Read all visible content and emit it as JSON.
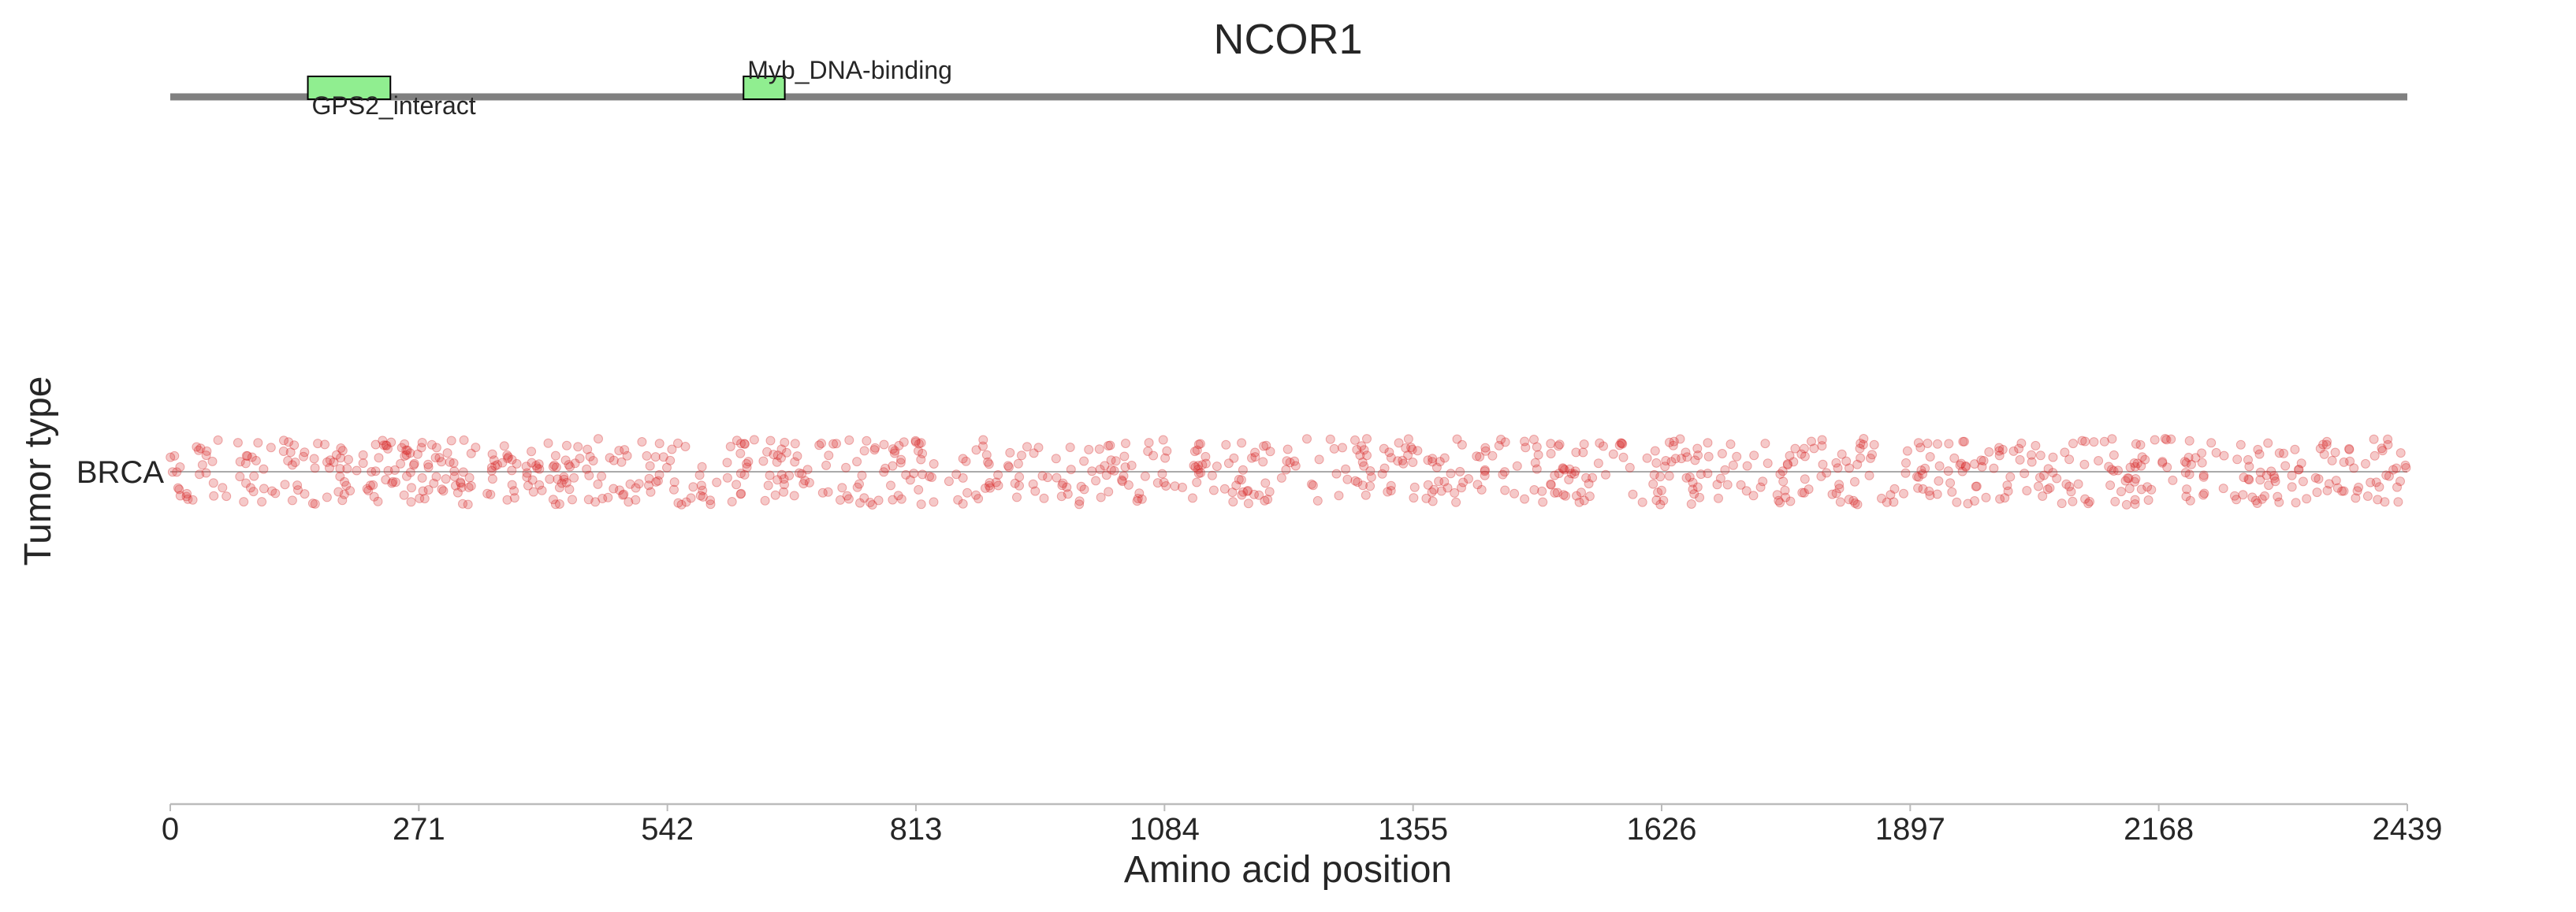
{
  "chart_data": {
    "type": "scatter",
    "title": "NCOR1",
    "xlabel": "Amino acid position",
    "ylabel": "Tumor type",
    "xlim": [
      0,
      2439
    ],
    "x_ticks": [
      0,
      271,
      542,
      813,
      1084,
      1355,
      1626,
      1897,
      2168,
      2439
    ],
    "categories": [
      "BRCA"
    ],
    "protein_length": 2439,
    "domains": [
      {
        "name": "GPS2_interact",
        "start": 150,
        "end": 240,
        "label_position": "below"
      },
      {
        "name": "Myb_DNA-binding",
        "start": 625,
        "end": 670,
        "label_position": "above"
      }
    ],
    "series": [
      {
        "category": "BRCA",
        "point_count": 1100,
        "x_range": [
          0,
          2439
        ],
        "y_jitter": 0.1,
        "denser_regions": [
          [
            150,
            720
          ],
          [
            1590,
            2439
          ]
        ]
      }
    ],
    "grid": false,
    "legend": "none",
    "colors": {
      "point": "#d62728",
      "domain_fill": "#90ee90",
      "domain_stroke": "#000000",
      "protein_line": "#808080",
      "baseline": "#aaaaaa",
      "axis": "#bbbbbb",
      "text": "#262626"
    }
  }
}
